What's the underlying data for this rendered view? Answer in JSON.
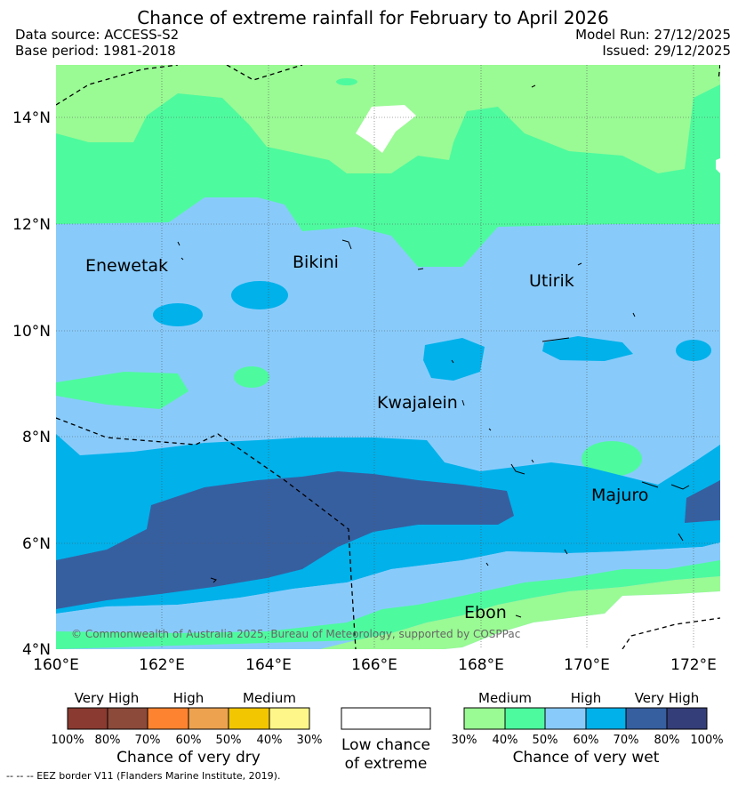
{
  "header": {
    "title": "Chance of extreme rainfall for February to April 2026",
    "data_source": "Data source: ACCESS-S2",
    "base_period": "Base period: 1981-2018",
    "model_run": "Model Run: 27/12/2025",
    "issued": "Issued: 29/12/2025"
  },
  "map": {
    "lon_ticks": [
      "160°E",
      "162°E",
      "164°E",
      "166°E",
      "168°E",
      "170°E",
      "172°E"
    ],
    "lat_ticks": [
      "14°N",
      "12°N",
      "10°N",
      "8°N",
      "6°N",
      "4°N"
    ],
    "places": {
      "enewetak": "Enewetak",
      "bikini": "Bikini",
      "utirik": "Utirik",
      "kwajalein": "Kwajalein",
      "majuro": "Majuro",
      "ebon": "Ebon"
    },
    "copyright": "© Commonwealth of Australia 2025, Bureau of Meteorology, supported by COSPPac",
    "colors": {
      "medium_wet": "#9afa94",
      "high_wet_40": "#4efa9e",
      "high_wet_50": "#88cbfb",
      "high_wet_60": "#00b1ea",
      "very_high_70": "#365fa0",
      "very_high_80": "#343e78"
    }
  },
  "legend": {
    "dry": {
      "headers": [
        "Very High",
        "High",
        "Medium"
      ],
      "pcts": [
        "100%",
        "80%",
        "70%",
        "60%",
        "50%",
        "40%",
        "30%"
      ],
      "caption": "Chance of very dry",
      "colors": [
        "#8a3a30",
        "#8b4a3a",
        "#fd8330",
        "#eca24f",
        "#f2c600",
        "#fef689"
      ]
    },
    "low": {
      "line1": "Low chance",
      "line2": "of extreme"
    },
    "wet": {
      "headers": [
        "Medium",
        "High",
        "Very High"
      ],
      "pcts": [
        "30%",
        "40%",
        "50%",
        "60%",
        "70%",
        "80%",
        "100%"
      ],
      "caption": "Chance of very wet",
      "colors": [
        "#9afa94",
        "#4efa9e",
        "#88cbfb",
        "#00b1ea",
        "#365fa0",
        "#343e78"
      ]
    }
  },
  "footer": {
    "eez": "--  --  -- EEZ border V11 (Flanders Marine Institute, 2019)."
  }
}
